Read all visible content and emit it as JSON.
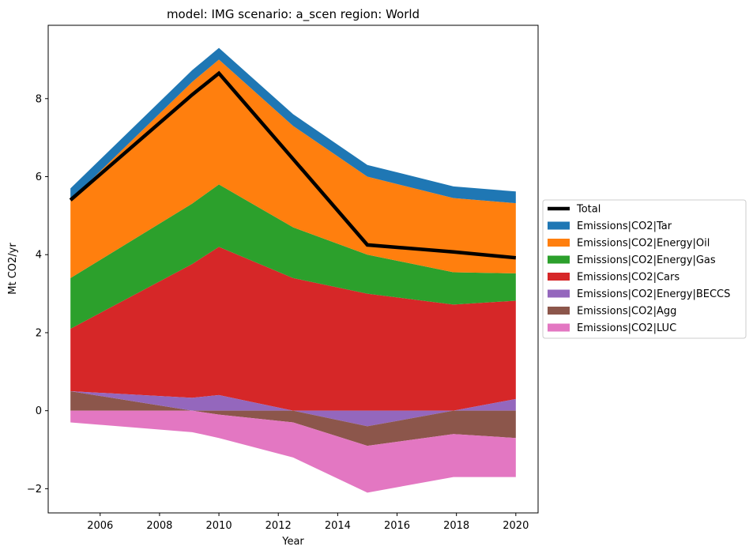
{
  "chart_data": {
    "type": "area",
    "title": "model: IMG scenario: a_scen region: World",
    "xlabel": "Year",
    "ylabel": "Mt CO2/yr",
    "xlim": [
      2004.25,
      2020.75
    ],
    "ylim": [
      -2.62,
      9.88
    ],
    "xticks": [
      2006,
      2008,
      2010,
      2012,
      2014,
      2016,
      2018,
      2020
    ],
    "yticks": [
      -2,
      0,
      2,
      4,
      6,
      8
    ],
    "x": [
      2005,
      2009.1,
      2010,
      2012.5,
      2015,
      2017.9,
      2020
    ],
    "legend_position": "center-right outside",
    "positive_series": [
      {
        "name": "Emissions|CO2|Cars",
        "color": "#d62728",
        "values": [
          1.6,
          3.43,
          3.8,
          3.4,
          3.0,
          2.72,
          2.52
        ]
      },
      {
        "name": "Emissions|CO2|Energy|Gas",
        "color": "#2ca02c",
        "values": [
          1.3,
          1.55,
          1.6,
          1.3,
          1.0,
          0.83,
          0.7
        ]
      },
      {
        "name": "Emissions|CO2|Energy|Oil",
        "color": "#ff7f0e",
        "values": [
          2.0,
          3.12,
          3.2,
          2.6,
          2.0,
          1.9,
          1.8
        ]
      },
      {
        "name": "Emissions|CO2|Tar",
        "color": "#1f77b4",
        "values": [
          0.3,
          0.3,
          0.3,
          0.3,
          0.3,
          0.3,
          0.3
        ]
      }
    ],
    "negative_series": [
      {
        "name": "Emissions|CO2|Energy|BECCS",
        "color": "#9467bd",
        "values": [
          0.0,
          0.0,
          0.0,
          0.0,
          -0.4,
          0.0,
          0.0
        ]
      },
      {
        "name": "Emissions|CO2|Agg",
        "color": "#8c564b",
        "values": [
          0.0,
          0.0,
          -0.1,
          -0.3,
          -0.5,
          -0.6,
          -0.7
        ]
      },
      {
        "name": "Emissions|CO2|LUC",
        "color": "#e377c2",
        "values": [
          -0.3,
          -0.55,
          -0.6,
          -0.9,
          -1.2,
          -1.1,
          -1.0
        ]
      }
    ],
    "mixed_series": [
      {
        "name": "Emissions|CO2|Energy|BECCS",
        "color": "#9467bd",
        "values": [
          0.5,
          0.33,
          0.4,
          0.0,
          -0.4,
          0.0,
          0.3
        ]
      },
      {
        "name": "Emissions|CO2|Agg",
        "color": "#8c564b",
        "values": [
          0.5,
          0.0,
          -0.1,
          0.0,
          -0.5,
          -0.6,
          -0.7
        ]
      }
    ],
    "total": {
      "name": "Total",
      "color": "#000000",
      "values": [
        5.4,
        8.1,
        8.65,
        6.45,
        4.25,
        4.07,
        3.92
      ]
    },
    "legend": [
      {
        "name": "Total",
        "color": "#000000",
        "kind": "line"
      },
      {
        "name": "Emissions|CO2|Tar",
        "color": "#1f77b4",
        "kind": "patch"
      },
      {
        "name": "Emissions|CO2|Energy|Oil",
        "color": "#ff7f0e",
        "kind": "patch"
      },
      {
        "name": "Emissions|CO2|Energy|Gas",
        "color": "#2ca02c",
        "kind": "patch"
      },
      {
        "name": "Emissions|CO2|Cars",
        "color": "#d62728",
        "kind": "patch"
      },
      {
        "name": "Emissions|CO2|Energy|BECCS",
        "color": "#9467bd",
        "kind": "patch"
      },
      {
        "name": "Emissions|CO2|Agg",
        "color": "#8c564b",
        "kind": "patch"
      },
      {
        "name": "Emissions|CO2|LUC",
        "color": "#e377c2",
        "kind": "patch"
      }
    ]
  }
}
